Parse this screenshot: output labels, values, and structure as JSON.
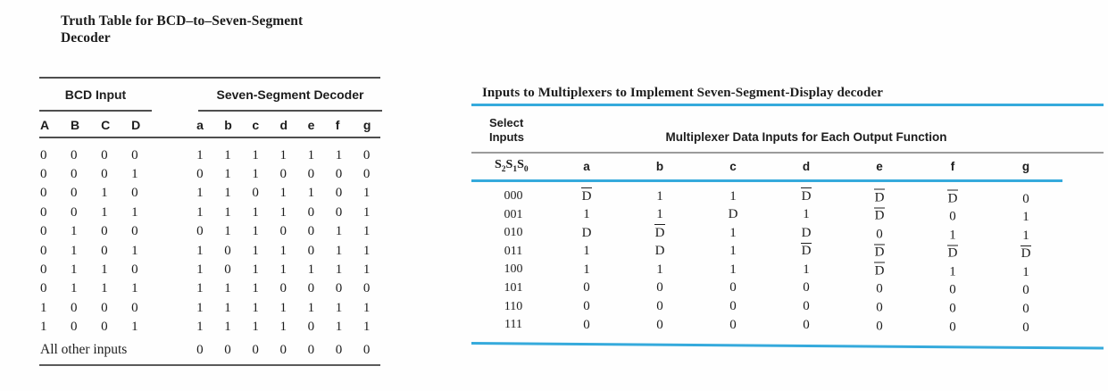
{
  "colors": {
    "accent": "#35aadc",
    "rule_dark": "#4e4e4e",
    "rule_gray": "#9b9b9b",
    "text": "#1d1d1d"
  },
  "left_table": {
    "title_lines": [
      "Truth Table for BCD–to–Seven-Segment",
      "Decoder"
    ],
    "group_headers": {
      "inputs": "BCD Input",
      "outputs": "Seven-Segment Decoder"
    },
    "input_cols": [
      "A",
      "B",
      "C",
      "D"
    ],
    "output_cols": [
      "a",
      "b",
      "c",
      "d",
      "e",
      "f",
      "g"
    ],
    "rows": [
      {
        "inputs": [
          "0",
          "0",
          "0",
          "0"
        ],
        "outputs": [
          "1",
          "1",
          "1",
          "1",
          "1",
          "1",
          "0"
        ]
      },
      {
        "inputs": [
          "0",
          "0",
          "0",
          "1"
        ],
        "outputs": [
          "0",
          "1",
          "1",
          "0",
          "0",
          "0",
          "0"
        ]
      },
      {
        "inputs": [
          "0",
          "0",
          "1",
          "0"
        ],
        "outputs": [
          "1",
          "1",
          "0",
          "1",
          "1",
          "0",
          "1"
        ]
      },
      {
        "inputs": [
          "0",
          "0",
          "1",
          "1"
        ],
        "outputs": [
          "1",
          "1",
          "1",
          "1",
          "0",
          "0",
          "1"
        ]
      },
      {
        "inputs": [
          "0",
          "1",
          "0",
          "0"
        ],
        "outputs": [
          "0",
          "1",
          "1",
          "0",
          "0",
          "1",
          "1"
        ]
      },
      {
        "inputs": [
          "0",
          "1",
          "0",
          "1"
        ],
        "outputs": [
          "1",
          "0",
          "1",
          "1",
          "0",
          "1",
          "1"
        ]
      },
      {
        "inputs": [
          "0",
          "1",
          "1",
          "0"
        ],
        "outputs": [
          "1",
          "0",
          "1",
          "1",
          "1",
          "1",
          "1"
        ]
      },
      {
        "inputs": [
          "0",
          "1",
          "1",
          "1"
        ],
        "outputs": [
          "1",
          "1",
          "1",
          "0",
          "0",
          "0",
          "0"
        ]
      },
      {
        "inputs": [
          "1",
          "0",
          "0",
          "0"
        ],
        "outputs": [
          "1",
          "1",
          "1",
          "1",
          "1",
          "1",
          "1"
        ]
      },
      {
        "inputs": [
          "1",
          "0",
          "0",
          "1"
        ],
        "outputs": [
          "1",
          "1",
          "1",
          "1",
          "0",
          "1",
          "1"
        ]
      }
    ],
    "footer": {
      "label": "All other inputs",
      "outputs": [
        "0",
        "0",
        "0",
        "0",
        "0",
        "0",
        "0"
      ]
    }
  },
  "right_table": {
    "title": "Inputs to Multiplexers to Implement Seven-Segment-Display decoder",
    "select_header_lines": [
      "Select",
      "Inputs"
    ],
    "data_inputs_header": "Multiplexer Data Inputs for Each Output Function",
    "select_col_label": "S2S1S0",
    "output_cols": [
      "a",
      "b",
      "c",
      "d",
      "e",
      "f",
      "g"
    ],
    "rows": [
      {
        "select": "000",
        "values": [
          "D̅",
          "1",
          "1",
          "D̅",
          "D̅",
          "D̅",
          "0"
        ]
      },
      {
        "select": "001",
        "values": [
          "1",
          "1",
          "D",
          "1",
          "D̅",
          "0",
          "1"
        ]
      },
      {
        "select": "010",
        "values": [
          "D",
          "D̅",
          "1",
          "D",
          "0",
          "1",
          "1"
        ]
      },
      {
        "select": "011",
        "values": [
          "1",
          "D",
          "1",
          "D̅",
          "D̅",
          "D̅",
          "D̅"
        ]
      },
      {
        "select": "100",
        "values": [
          "1",
          "1",
          "1",
          "1",
          "D̅",
          "1",
          "1"
        ]
      },
      {
        "select": "101",
        "values": [
          "0",
          "0",
          "0",
          "0",
          "0",
          "0",
          "0"
        ]
      },
      {
        "select": "110",
        "values": [
          "0",
          "0",
          "0",
          "0",
          "0",
          "0",
          "0"
        ]
      },
      {
        "select": "111",
        "values": [
          "0",
          "0",
          "0",
          "0",
          "0",
          "0",
          "0"
        ]
      }
    ]
  }
}
